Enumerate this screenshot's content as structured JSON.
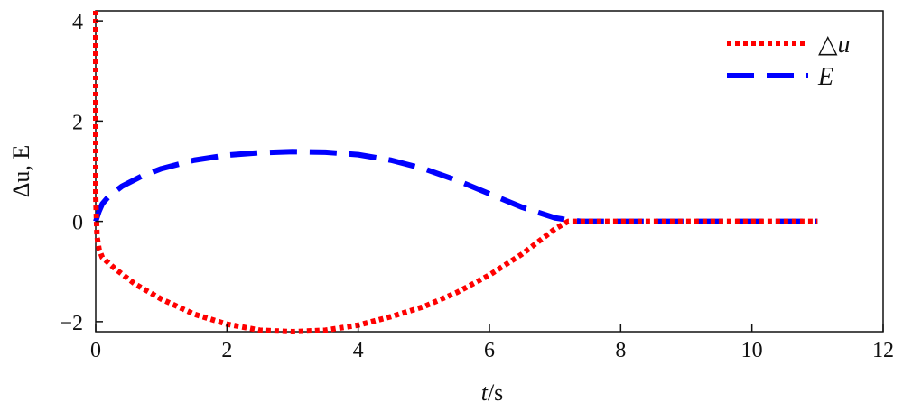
{
  "chart_data": {
    "type": "line",
    "title": "",
    "xlabel_italic": "t",
    "xlabel_unit": "/s",
    "ylabel": "Δu, E",
    "xlim": [
      0,
      12
    ],
    "ylim": [
      -2.2,
      4.2
    ],
    "xticks": [
      0,
      2,
      4,
      6,
      8,
      10,
      12
    ],
    "yticks": [
      -2,
      0,
      2,
      4
    ],
    "ytick_labels": [
      "−2",
      "0",
      "2",
      "4"
    ],
    "grid": false,
    "legend_position": "top-right",
    "series": [
      {
        "name": "△u",
        "color": "#ff0000",
        "style": "dotted",
        "x": [
          0,
          0,
          0.02,
          0.05,
          0.1,
          0.3,
          0.6,
          1.0,
          1.5,
          2.0,
          2.5,
          3.0,
          3.5,
          4.0,
          4.5,
          5.0,
          5.5,
          6.0,
          6.5,
          7.0,
          7.2,
          7.5,
          8,
          9,
          10,
          11
        ],
        "y": [
          4.2,
          0.5,
          -0.3,
          -0.55,
          -0.72,
          -0.95,
          -1.25,
          -1.55,
          -1.85,
          -2.05,
          -2.17,
          -2.2,
          -2.17,
          -2.07,
          -1.9,
          -1.7,
          -1.42,
          -1.07,
          -0.65,
          -0.15,
          0,
          0,
          0,
          0,
          0,
          0
        ]
      },
      {
        "name": "E",
        "color": "#0000ff",
        "style": "dashed",
        "x": [
          0,
          0.05,
          0.1,
          0.2,
          0.4,
          0.7,
          1.0,
          1.5,
          2.0,
          2.5,
          3.0,
          3.5,
          4.0,
          4.5,
          5.0,
          5.5,
          6.0,
          6.5,
          7.0,
          7.2,
          7.4,
          8,
          9,
          10,
          11
        ],
        "y": [
          0,
          0.2,
          0.35,
          0.5,
          0.7,
          0.9,
          1.05,
          1.22,
          1.32,
          1.37,
          1.39,
          1.38,
          1.33,
          1.22,
          1.05,
          0.82,
          0.55,
          0.28,
          0.07,
          0.03,
          0,
          0,
          0,
          0,
          0
        ]
      }
    ]
  }
}
